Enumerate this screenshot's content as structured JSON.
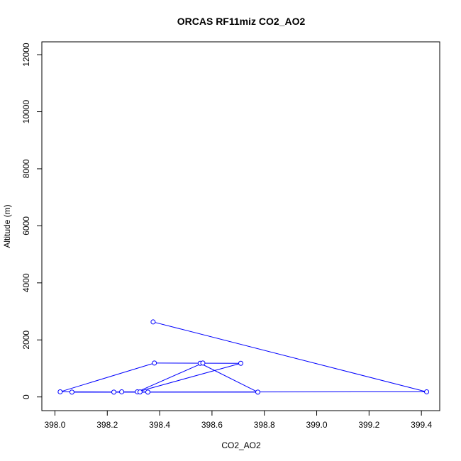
{
  "chart_data": {
    "type": "line",
    "title": "ORCAS RF11miz CO2_AO2",
    "xlabel": "CO2_AO2",
    "ylabel": "Altitude (m)",
    "xlim": [
      397.95,
      399.47
    ],
    "ylim": [
      -480,
      12450
    ],
    "xticks": [
      398.0,
      398.2,
      398.4,
      398.6,
      398.8,
      399.0,
      399.2,
      399.4
    ],
    "xtick_labels": [
      "398.0",
      "398.2",
      "398.4",
      "398.6",
      "398.8",
      "399.0",
      "399.2",
      "399.4"
    ],
    "yticks": [
      0,
      2000,
      4000,
      6000,
      8000,
      10000,
      12000
    ],
    "ytick_labels": [
      "0",
      "2000",
      "4000",
      "6000",
      "8000",
      "10000",
      "12000"
    ],
    "grid": false,
    "series": [
      {
        "color": "#0000ff",
        "marker": "open-circle",
        "points": [
          {
            "x": 398.375,
            "y": 2630
          },
          {
            "x": 399.42,
            "y": 180
          },
          {
            "x": 398.065,
            "y": 170
          },
          {
            "x": 398.775,
            "y": 170
          },
          {
            "x": 398.555,
            "y": 1180
          },
          {
            "x": 398.565,
            "y": 1190
          },
          {
            "x": 398.315,
            "y": 180
          },
          {
            "x": 398.71,
            "y": 1180
          },
          {
            "x": 398.38,
            "y": 1190
          },
          {
            "x": 398.02,
            "y": 180
          },
          {
            "x": 398.225,
            "y": 170
          },
          {
            "x": 398.255,
            "y": 180
          },
          {
            "x": 398.325,
            "y": 175
          },
          {
            "x": 398.355,
            "y": 170
          }
        ]
      }
    ]
  }
}
